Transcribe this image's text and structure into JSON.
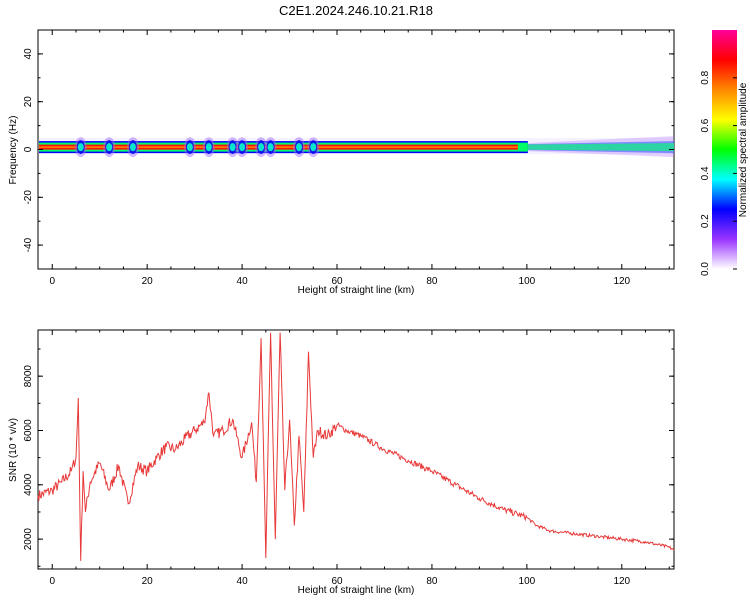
{
  "title": "C2E1.2024.246.10.21.R18",
  "colors": {
    "snr_line": "#e83a3a",
    "colorbar_stops": [
      "#ffffff",
      "#9933ff",
      "#0000ff",
      "#00ffff",
      "#00ff00",
      "#ffff00",
      "#ff8800",
      "#ff0000",
      "#ff0099"
    ]
  },
  "chart_data": [
    {
      "type": "heatmap",
      "xlabel": "Height of straight line (km)",
      "ylabel": "Frequency (Hz)",
      "xlim": [
        -3,
        131
      ],
      "ylim": [
        -50,
        50
      ],
      "x_ticks": [
        "0",
        "20",
        "40",
        "60",
        "80",
        "100",
        "120"
      ],
      "y_ticks": [
        "-40",
        "-20",
        "0",
        "20",
        "40"
      ],
      "band_center_hz": 1,
      "peak_heights_km": [
        6,
        12,
        17,
        29,
        33,
        38,
        40,
        44,
        46,
        52,
        55
      ],
      "broadening_start_km": 100,
      "colorbar": {
        "label": "Normalized spectral amplitude",
        "range": [
          0,
          1
        ],
        "ticks": [
          "0.0",
          "0.2",
          "0.4",
          "0.6",
          "0.8"
        ]
      }
    },
    {
      "type": "line",
      "xlabel": "Height of straight line (km)",
      "ylabel": "SNR (10 * v/v)",
      "xlim": [
        -3,
        131
      ],
      "ylim": [
        900,
        9700
      ],
      "x_ticks": [
        "0",
        "20",
        "40",
        "60",
        "80",
        "100",
        "120"
      ],
      "y_ticks": [
        "2000",
        "4000",
        "6000",
        "8000"
      ],
      "series": [
        {
          "x": [
            -3,
            0,
            2,
            4,
            5,
            5.5,
            6,
            6.5,
            7,
            8,
            10,
            12,
            14,
            16,
            18,
            20,
            22,
            24,
            26,
            28,
            30,
            32,
            33,
            34,
            36,
            38,
            40,
            42,
            43,
            44,
            45,
            46,
            47,
            48,
            49,
            50,
            51,
            52,
            53,
            54,
            55,
            56,
            58,
            60,
            62,
            65,
            68,
            70,
            75,
            80,
            85,
            90,
            95,
            100,
            102,
            105,
            110,
            115,
            120,
            125,
            130,
            131
          ],
          "y": [
            3600,
            3800,
            4100,
            4500,
            5000,
            7200,
            1200,
            4500,
            3000,
            4100,
            4800,
            3800,
            4700,
            3300,
            4700,
            4500,
            5000,
            5400,
            5300,
            5700,
            6000,
            6300,
            7400,
            5800,
            6000,
            6400,
            5000,
            6300,
            4100,
            9400,
            1300,
            9600,
            2000,
            9600,
            3800,
            6400,
            2500,
            5800,
            3000,
            8900,
            5000,
            6000,
            5800,
            6200,
            6000,
            5800,
            5500,
            5300,
            4900,
            4500,
            4000,
            3500,
            3100,
            2800,
            2500,
            2300,
            2200,
            2100,
            2000,
            1900,
            1700,
            1600
          ]
        }
      ]
    }
  ]
}
